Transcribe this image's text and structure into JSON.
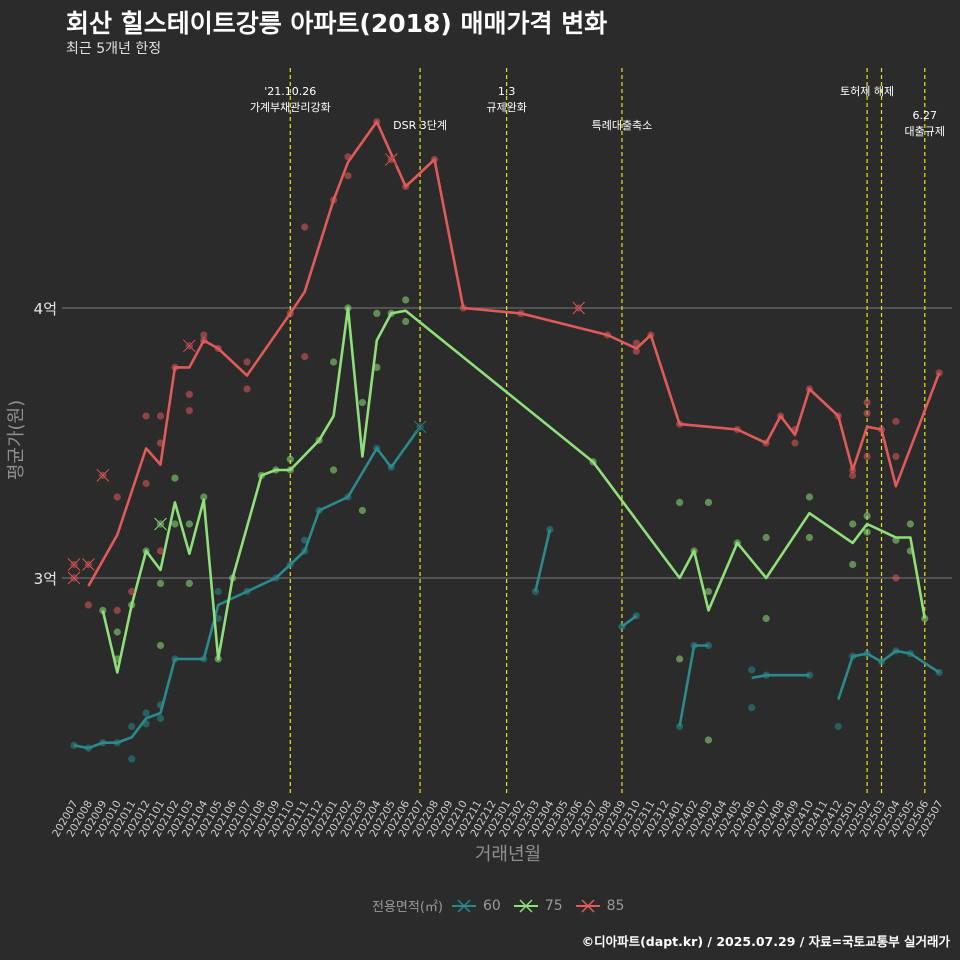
{
  "header": {
    "title": "회산 힐스테이트강릉 아파트(2018) 매매가격 변화",
    "subtitle": "최근 5개년 한정"
  },
  "caption": "©디아파트(dapt.kr) / 2025.07.29 / 자료=국토교통부 실거래가",
  "legend": {
    "title": "전용면적(㎡)",
    "items": [
      {
        "label": "60",
        "color": "#2a8a8c"
      },
      {
        "label": "75",
        "color": "#8fe07a"
      },
      {
        "label": "85",
        "color": "#e05a5a"
      }
    ]
  },
  "chart_data": {
    "type": "line",
    "xlabel": "거래년월",
    "ylabel": "평균가(원)",
    "categories": [
      "202007",
      "202008",
      "202009",
      "202010",
      "202011",
      "202012",
      "202101",
      "202102",
      "202103",
      "202104",
      "202105",
      "202106",
      "202107",
      "202108",
      "202109",
      "202110",
      "202111",
      "202112",
      "202201",
      "202202",
      "202203",
      "202204",
      "202205",
      "202206",
      "202207",
      "202208",
      "202209",
      "202210",
      "202211",
      "202212",
      "202301",
      "202302",
      "202303",
      "202304",
      "202305",
      "202306",
      "202307",
      "202308",
      "202309",
      "202310",
      "202311",
      "202312",
      "202401",
      "202402",
      "202403",
      "202404",
      "202405",
      "202406",
      "202407",
      "202408",
      "202409",
      "202410",
      "202411",
      "202412",
      "202501",
      "202502",
      "202503",
      "202504",
      "202505",
      "202506",
      "202507"
    ],
    "yticks": [
      {
        "value": 3.0,
        "label": "3억"
      },
      {
        "value": 4.0,
        "label": "4억"
      }
    ],
    "ylim": [
      2.2,
      4.7
    ],
    "grid": "horizontal at 3억 and 4억",
    "legend_position": "bottom",
    "series": [
      {
        "name": "60",
        "color": "#2a8a8c",
        "line": [
          [
            "202007",
            2.38
          ],
          [
            "202008",
            2.37
          ],
          [
            "202009",
            2.39
          ],
          [
            "202010",
            2.39
          ],
          [
            "202011",
            2.41
          ],
          [
            "202012",
            2.48
          ],
          [
            "202101",
            2.5
          ],
          [
            "202102",
            2.7
          ],
          [
            "202104",
            2.7
          ],
          [
            "202105",
            2.9
          ],
          [
            "202107",
            2.95
          ],
          [
            "202109",
            3.0
          ],
          [
            "202110",
            3.05
          ],
          [
            "202111",
            3.1
          ],
          [
            "202112",
            3.25
          ],
          [
            "202202",
            3.3
          ],
          [
            "202204",
            3.48
          ],
          [
            "202205",
            3.41
          ],
          [
            "202207",
            3.56
          ],
          null,
          [
            "202303",
            2.95
          ],
          [
            "202304",
            3.18
          ],
          null,
          [
            "202309",
            2.82
          ],
          [
            "202310",
            2.86
          ],
          null,
          [
            "202401",
            2.45
          ],
          [
            "202402",
            2.75
          ],
          [
            "202403",
            2.75
          ],
          null,
          [
            "202406",
            2.63
          ],
          [
            "202407",
            2.64
          ],
          [
            "202410",
            2.64
          ],
          null,
          [
            "202412",
            2.55
          ],
          [
            "202501",
            2.71
          ],
          [
            "202502",
            2.72
          ],
          [
            "202503",
            2.69
          ],
          [
            "202504",
            2.73
          ],
          [
            "202505",
            2.72
          ],
          [
            "202507",
            2.65
          ]
        ],
        "points": [
          [
            "202007",
            2.38
          ],
          [
            "202008",
            2.37
          ],
          [
            "202009",
            2.39
          ],
          [
            "202010",
            2.39
          ],
          [
            "202011",
            2.33
          ],
          [
            "202011",
            2.45
          ],
          [
            "202012",
            2.46
          ],
          [
            "202012",
            2.5
          ],
          [
            "202101",
            2.48
          ],
          [
            "202101",
            2.53
          ],
          [
            "202102",
            2.7
          ],
          [
            "202104",
            2.7
          ],
          [
            "202105",
            2.95
          ],
          [
            "202105",
            2.85
          ],
          [
            "202107",
            2.95
          ],
          [
            "202109",
            3.0
          ],
          [
            "202110",
            3.05
          ],
          [
            "202111",
            3.1
          ],
          [
            "202111",
            3.14
          ],
          [
            "202112",
            3.25
          ],
          [
            "202202",
            3.3
          ],
          [
            "202204",
            3.48
          ],
          [
            "202205",
            3.41
          ],
          [
            "202207",
            3.56
          ],
          [
            "202303",
            2.95
          ],
          [
            "202304",
            3.18
          ],
          [
            "202309",
            2.82
          ],
          [
            "202310",
            2.86
          ],
          [
            "202401",
            2.45
          ],
          [
            "202402",
            2.75
          ],
          [
            "202403",
            2.75
          ],
          [
            "202406",
            2.66
          ],
          [
            "202406",
            2.52
          ],
          [
            "202407",
            2.64
          ],
          [
            "202410",
            2.64
          ],
          [
            "202412",
            2.45
          ],
          [
            "202501",
            2.71
          ],
          [
            "202502",
            2.72
          ],
          [
            "202503",
            2.69
          ],
          [
            "202504",
            2.73
          ],
          [
            "202505",
            2.72
          ],
          [
            "202507",
            2.65
          ]
        ],
        "crosses": [
          [
            "202207",
            3.56
          ]
        ]
      },
      {
        "name": "75",
        "color": "#8fe07a",
        "line": [
          [
            "202009",
            2.88
          ],
          [
            "202010",
            2.65
          ],
          [
            "202011",
            2.9
          ],
          [
            "202012",
            3.1
          ],
          [
            "202101",
            3.03
          ],
          [
            "202102",
            3.28
          ],
          [
            "202103",
            3.09
          ],
          [
            "202104",
            3.29
          ],
          [
            "202105",
            2.7
          ],
          [
            "202106",
            3.0
          ],
          [
            "202108",
            3.38
          ],
          [
            "202109",
            3.4
          ],
          [
            "202110",
            3.4
          ],
          [
            "202112",
            3.51
          ],
          [
            "202201",
            3.6
          ],
          [
            "202202",
            4.0
          ],
          [
            "202203",
            3.45
          ],
          [
            "202204",
            3.88
          ],
          [
            "202205",
            3.98
          ],
          [
            "202206",
            3.99
          ],
          [
            "202307",
            3.43
          ],
          [
            "202401",
            3.0
          ],
          [
            "202402",
            3.1
          ],
          [
            "202403",
            2.88
          ],
          [
            "202405",
            3.13
          ],
          [
            "202407",
            3.0
          ],
          [
            "202410",
            3.24
          ],
          [
            "202501",
            3.13
          ],
          [
            "202502",
            3.2
          ],
          [
            "202504",
            3.15
          ],
          [
            "202505",
            3.15
          ],
          [
            "202506",
            2.85
          ]
        ],
        "points": [
          [
            "202009",
            2.88
          ],
          [
            "202010",
            2.8
          ],
          [
            "202010",
            2.7
          ],
          [
            "202011",
            2.9
          ],
          [
            "202012",
            3.1
          ],
          [
            "202101",
            3.2
          ],
          [
            "202101",
            2.98
          ],
          [
            "202101",
            2.75
          ],
          [
            "202102",
            3.37
          ],
          [
            "202102",
            3.2
          ],
          [
            "202103",
            3.2
          ],
          [
            "202103",
            2.98
          ],
          [
            "202104",
            3.3
          ],
          [
            "202105",
            2.7
          ],
          [
            "202106",
            3.0
          ],
          [
            "202108",
            3.38
          ],
          [
            "202109",
            3.4
          ],
          [
            "202110",
            3.44
          ],
          [
            "202110",
            3.4
          ],
          [
            "202112",
            3.51
          ],
          [
            "202201",
            3.8
          ],
          [
            "202201",
            3.4
          ],
          [
            "202202",
            4.0
          ],
          [
            "202203",
            3.65
          ],
          [
            "202203",
            3.25
          ],
          [
            "202204",
            3.78
          ],
          [
            "202204",
            3.98
          ],
          [
            "202205",
            3.98
          ],
          [
            "202206",
            4.03
          ],
          [
            "202206",
            3.95
          ],
          [
            "202307",
            3.43
          ],
          [
            "202401",
            3.28
          ],
          [
            "202401",
            2.7
          ],
          [
            "202402",
            3.1
          ],
          [
            "202403",
            3.28
          ],
          [
            "202403",
            2.95
          ],
          [
            "202403",
            2.4
          ],
          [
            "202405",
            3.13
          ],
          [
            "202407",
            3.15
          ],
          [
            "202407",
            2.85
          ],
          [
            "202410",
            3.3
          ],
          [
            "202410",
            3.15
          ],
          [
            "202501",
            3.2
          ],
          [
            "202501",
            3.05
          ],
          [
            "202502",
            3.23
          ],
          [
            "202502",
            3.17
          ],
          [
            "202504",
            3.14
          ],
          [
            "202505",
            3.2
          ],
          [
            "202505",
            3.1
          ],
          [
            "202506",
            2.85
          ]
        ],
        "crosses": [
          [
            "202101",
            3.2
          ]
        ]
      },
      {
        "name": "85",
        "color": "#e05a5a",
        "line": [
          [
            "202008",
            2.97
          ],
          [
            "202010",
            3.16
          ],
          [
            "202012",
            3.48
          ],
          [
            "202101",
            3.42
          ],
          [
            "202102",
            3.78
          ],
          [
            "202103",
            3.78
          ],
          [
            "202104",
            3.88
          ],
          [
            "202105",
            3.85
          ],
          [
            "202107",
            3.75
          ],
          [
            "202110",
            3.98
          ],
          [
            "202111",
            4.06
          ],
          [
            "202201",
            4.4
          ],
          [
            "202202",
            4.54
          ],
          [
            "202204",
            4.69
          ],
          [
            "202206",
            4.45
          ],
          [
            "202208",
            4.55
          ],
          [
            "202210",
            4.0
          ],
          [
            "202302",
            3.98
          ],
          [
            "202308",
            3.9
          ],
          [
            "202310",
            3.85
          ],
          [
            "202311",
            3.9
          ],
          [
            "202401",
            3.57
          ],
          [
            "202405",
            3.55
          ],
          [
            "202407",
            3.5
          ],
          [
            "202408",
            3.6
          ],
          [
            "202409",
            3.53
          ],
          [
            "202410",
            3.7
          ],
          [
            "202412",
            3.6
          ],
          [
            "202501",
            3.4
          ],
          [
            "202502",
            3.56
          ],
          [
            "202503",
            3.55
          ],
          [
            "202504",
            3.34
          ],
          [
            "202507",
            3.76
          ]
        ],
        "points": [
          [
            "202007",
            3.05
          ],
          [
            "202007",
            3.0
          ],
          [
            "202008",
            2.9
          ],
          [
            "202008",
            3.05
          ],
          [
            "202009",
            3.38
          ],
          [
            "202010",
            3.3
          ],
          [
            "202010",
            2.88
          ],
          [
            "202011",
            2.95
          ],
          [
            "202012",
            3.6
          ],
          [
            "202012",
            3.35
          ],
          [
            "202101",
            3.6
          ],
          [
            "202101",
            3.5
          ],
          [
            "202101",
            3.1
          ],
          [
            "202102",
            3.78
          ],
          [
            "202103",
            3.86
          ],
          [
            "202103",
            3.68
          ],
          [
            "202103",
            3.62
          ],
          [
            "202104",
            3.9
          ],
          [
            "202104",
            3.88
          ],
          [
            "202105",
            3.85
          ],
          [
            "202107",
            3.8
          ],
          [
            "202107",
            3.7
          ],
          [
            "202110",
            3.98
          ],
          [
            "202111",
            4.3
          ],
          [
            "202111",
            3.82
          ],
          [
            "202201",
            4.4
          ],
          [
            "202202",
            4.49
          ],
          [
            "202202",
            4.56
          ],
          [
            "202204",
            4.69
          ],
          [
            "202205",
            4.55
          ],
          [
            "202206",
            4.45
          ],
          [
            "202208",
            4.55
          ],
          [
            "202210",
            4.0
          ],
          [
            "202302",
            3.98
          ],
          [
            "202306",
            4.0
          ],
          [
            "202308",
            3.9
          ],
          [
            "202310",
            3.84
          ],
          [
            "202310",
            3.87
          ],
          [
            "202311",
            3.9
          ],
          [
            "202401",
            3.57
          ],
          [
            "202405",
            3.55
          ],
          [
            "202407",
            3.5
          ],
          [
            "202408",
            3.6
          ],
          [
            "202409",
            3.5
          ],
          [
            "202409",
            3.55
          ],
          [
            "202410",
            3.7
          ],
          [
            "202412",
            3.6
          ],
          [
            "202501",
            3.4
          ],
          [
            "202501",
            3.38
          ],
          [
            "202502",
            3.65
          ],
          [
            "202502",
            3.61
          ],
          [
            "202502",
            3.45
          ],
          [
            "202503",
            3.55
          ],
          [
            "202504",
            3.58
          ],
          [
            "202504",
            3.45
          ],
          [
            "202504",
            3.0
          ],
          [
            "202507",
            3.76
          ]
        ],
        "crosses": [
          [
            "202007",
            3.05
          ],
          [
            "202007",
            3.0
          ],
          [
            "202008",
            3.05
          ],
          [
            "202009",
            3.38
          ],
          [
            "202103",
            3.86
          ],
          [
            "202205",
            4.55
          ],
          [
            "202306",
            4.0
          ]
        ]
      }
    ],
    "annotations": [
      {
        "x": "202110",
        "lines": [
          "'21.10.26",
          "가계부채관리강화"
        ],
        "level": 0
      },
      {
        "x": "202207",
        "lines": [
          "DSR 3단계"
        ],
        "level": 1
      },
      {
        "x": "202301",
        "lines": [
          "1.3",
          "규제완화"
        ],
        "level": 0
      },
      {
        "x": "202309",
        "lines": [
          "특례대출축소"
        ],
        "level": 1
      },
      {
        "x": "202502",
        "lines": [
          "토허제 해제"
        ],
        "level": 0
      },
      {
        "x": "202503",
        "lines": [],
        "level": 0
      },
      {
        "x": "202506",
        "lines": [
          "6.27",
          "대출규제"
        ],
        "level": 2
      }
    ]
  }
}
